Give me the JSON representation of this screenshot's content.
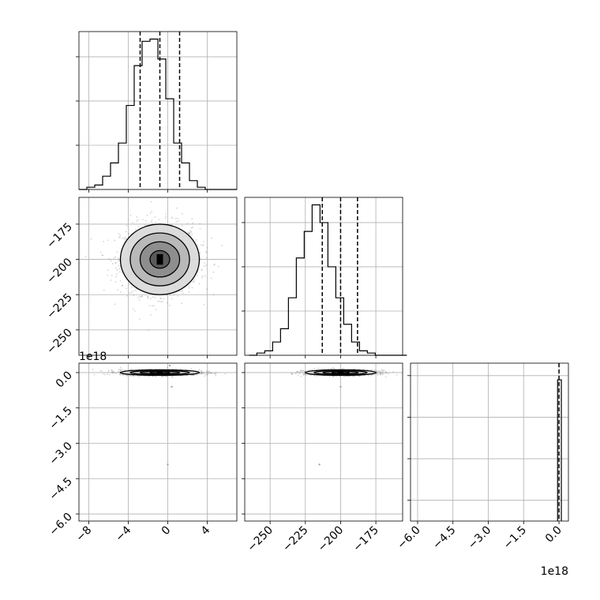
{
  "chart_data": [
    {
      "type": "histogram",
      "panel": "x-marginal",
      "xlim": [
        -9,
        7
      ],
      "grid": true,
      "quantiles": [
        -2.8,
        -0.8,
        1.2
      ],
      "bins": {
        "start": -9,
        "width": 0.8,
        "counts": [
          0,
          0.05,
          0.1,
          0.3,
          0.6,
          1.05,
          1.9,
          2.8,
          3.35,
          3.4,
          2.95,
          2.05,
          1.05,
          0.6,
          0.2,
          0.05,
          0,
          0,
          0,
          0
        ]
      },
      "xticks": [
        "−8",
        "−4",
        "0",
        "4"
      ],
      "xtick_values": [
        -8,
        -4,
        0,
        4
      ]
    },
    {
      "type": "histogram",
      "panel": "y-marginal",
      "xlim": [
        -268,
        -156
      ],
      "grid": true,
      "quantiles": [
        -213,
        -200,
        -188
      ],
      "bins": {
        "start": -265,
        "width": 5.6,
        "counts": [
          0,
          0.05,
          0.1,
          0.3,
          0.6,
          1.3,
          2.2,
          2.8,
          3.4,
          3.0,
          2.0,
          1.3,
          0.7,
          0.3,
          0.1,
          0.05,
          0,
          0,
          0,
          0
        ]
      },
      "xticks": [
        "−250",
        "−225",
        "−200",
        "−175"
      ],
      "xtick_values": [
        -250,
        -225,
        -200,
        -175
      ]
    },
    {
      "type": "histogram",
      "panel": "z-marginal",
      "xlim": [
        -6.3,
        0.4
      ],
      "grid": true,
      "offset_label": "1e18",
      "quantiles": [
        -0.03,
        -0.005,
        0.005
      ],
      "bins": {
        "start": -0.05,
        "width": 0.16,
        "counts": [
          0.02,
          3.4,
          0
        ]
      },
      "xticks": [
        "−6.0",
        "−4.5",
        "−3.0",
        "−1.5",
        "0.0"
      ],
      "xtick_values": [
        -6,
        -4.5,
        -3,
        -1.5,
        0
      ]
    },
    {
      "type": "scatter-contour",
      "panel": "y-vs-x",
      "xlim": [
        -9,
        7
      ],
      "ylim": [
        -268,
        -156
      ],
      "center": [
        -0.8,
        -200
      ],
      "spread": [
        2.0,
        12.5
      ],
      "contour_levels": [
        0.5,
        1.0,
        1.5,
        2.0
      ],
      "yticks": [
        "−175",
        "−200",
        "−225",
        "−250"
      ],
      "ytick_values": [
        -175,
        -200,
        -225,
        -250
      ],
      "grid": true
    },
    {
      "type": "scatter-contour",
      "panel": "z-vs-x",
      "xlim": [
        -9,
        7
      ],
      "ylim": [
        -6.3,
        0.4
      ],
      "offset_label": "1e18",
      "center": [
        -0.8,
        0
      ],
      "spread": [
        2.0,
        0.06
      ],
      "outliers": [
        [
          0.0,
          -3.9
        ],
        [
          0.4,
          -0.6
        ],
        [
          0.2,
          0.3
        ]
      ],
      "yticks": [
        "0.0",
        "−1.5",
        "−3.0",
        "−4.5",
        "−6.0"
      ],
      "ytick_values": [
        0,
        -1.5,
        -3,
        -4.5,
        -6
      ],
      "grid": true
    },
    {
      "type": "scatter-contour",
      "panel": "z-vs-y",
      "xlim": [
        -268,
        -156
      ],
      "ylim": [
        -6.3,
        0.4
      ],
      "center": [
        -200,
        0
      ],
      "spread": [
        12.5,
        0.06
      ],
      "outliers": [
        [
          -215,
          -3.9
        ],
        [
          -200,
          -0.6
        ]
      ],
      "grid": true
    }
  ]
}
